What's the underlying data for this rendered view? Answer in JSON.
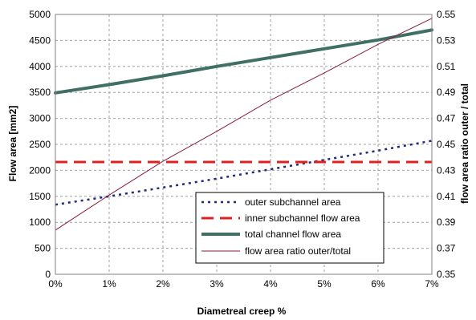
{
  "chart_data": {
    "type": "line",
    "xlabel": "Diametreal creep %",
    "ylabel": "Flow area [mm2]",
    "y2label": "flow area ratio outer / total",
    "x": [
      0,
      1,
      2,
      3,
      4,
      5,
      6,
      7
    ],
    "xticks": [
      "0%",
      "1%",
      "2%",
      "3%",
      "4%",
      "5%",
      "6%",
      "7%"
    ],
    "xlim": [
      0,
      7
    ],
    "ylim": [
      0,
      5000
    ],
    "yticks": [
      "0",
      "500",
      "1000",
      "1500",
      "2000",
      "2500",
      "3000",
      "3500",
      "4000",
      "4500",
      "5000"
    ],
    "y2lim": [
      0.35,
      0.55
    ],
    "y2ticks": [
      "0.35",
      "0.37",
      "0.39",
      "0.41",
      "0.43",
      "0.45",
      "0.47",
      "0.49",
      "0.51",
      "0.53",
      "0.55"
    ],
    "grid": true,
    "legend_position": "lower-center",
    "series": [
      {
        "name": "outer subchannel area",
        "axis": "left",
        "style": "dotted",
        "color": "#1f2a7a",
        "values": [
          1340,
          1500,
          1670,
          1840,
          2020,
          2200,
          2380,
          2570
        ]
      },
      {
        "name": "inner subchannel flow  area",
        "axis": "left",
        "style": "dashed",
        "color": "#e02020",
        "values": [
          2160,
          2160,
          2160,
          2160,
          2160,
          2160,
          2160,
          2160
        ]
      },
      {
        "name": "total channel flow  area",
        "axis": "left",
        "style": "solid-thick",
        "color": "#3f6f66",
        "values": [
          3490,
          3650,
          3820,
          4000,
          4170,
          4340,
          4510,
          4700
        ]
      },
      {
        "name": "flow  area ratio outer/total",
        "axis": "right",
        "style": "solid-thin",
        "color": "#8b1a3a",
        "values": [
          0.384,
          0.411,
          0.437,
          0.46,
          0.484,
          0.505,
          0.527,
          0.547
        ]
      }
    ]
  }
}
